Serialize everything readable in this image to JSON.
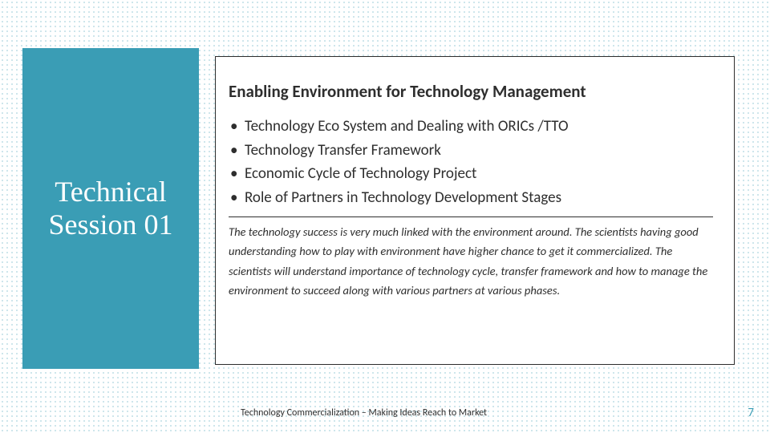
{
  "colors": {
    "teal": "#3a9db5",
    "text": "#2e2e2e",
    "panel_bg": "#ffffff",
    "slide_bg": "#ffffff"
  },
  "left_panel": {
    "title_line1": "Technical",
    "title_line2": "Session 01"
  },
  "content": {
    "title": "Enabling Environment for Technology Management",
    "bullets": [
      "Technology Eco System and Dealing with  ORICs /TTO",
      "Technology Transfer Framework",
      "Economic Cycle of Technology Project",
      "Role of Partners in Technology Development Stages"
    ],
    "description": "The technology success is very much linked with the environment around. The scientists having good understanding how to play with environment have higher chance to get it commercialized. The scientists will understand importance of technology cycle, transfer framework and how to manage the environment to succeed along with various partners at various phases."
  },
  "footer": {
    "text": "Technology Commercialization – Making Ideas Reach to Market",
    "page_number": "7"
  }
}
